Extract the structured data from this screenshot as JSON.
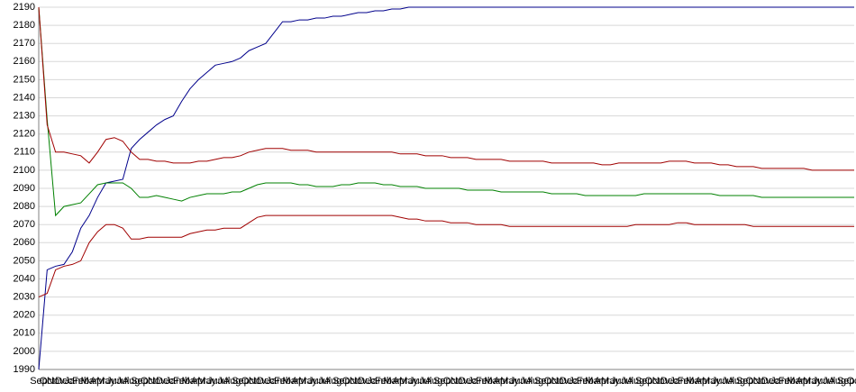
{
  "chart_data": {
    "type": "line",
    "categories": [
      "Sep",
      "Oct",
      "Nov",
      "Dec",
      "Jan",
      "Feb",
      "Mar",
      "Apr",
      "May",
      "Jun",
      "Jul",
      "Aug",
      "Sep",
      "Oct",
      "Nov",
      "Dec",
      "Jan",
      "Feb",
      "Mar",
      "Apr",
      "May",
      "Jun",
      "Jul",
      "Aug",
      "Sep",
      "Oct",
      "Nov",
      "Dec",
      "Jan",
      "Feb",
      "Mar",
      "Apr",
      "May",
      "Jun",
      "Jul",
      "Aug",
      "Sep",
      "Oct",
      "Nov",
      "Dec",
      "Jan",
      "Feb",
      "Mar",
      "Apr",
      "May",
      "Jun",
      "Jul",
      "Aug",
      "Sep",
      "Oct",
      "Nov",
      "Dec",
      "Jan",
      "Feb",
      "Mar",
      "Apr",
      "May",
      "Jun",
      "Jul",
      "Aug",
      "Sep",
      "Oct",
      "Nov",
      "Dec",
      "Jan",
      "Feb",
      "Mar",
      "Apr",
      "May",
      "Jun",
      "Jul",
      "Aug",
      "Sep",
      "Oct",
      "Nov",
      "Dec",
      "Jan",
      "Feb",
      "Mar",
      "Apr",
      "May",
      "Jun",
      "Jul",
      "Aug",
      "Sep",
      "Oct",
      "Nov",
      "Dec",
      "Jan",
      "Feb",
      "Mar",
      "Apr",
      "May",
      "Jun",
      "Jul",
      "Aug",
      "Sep",
      "Oct"
    ],
    "series": [
      {
        "color": "#00008b",
        "values": [
          1990,
          2045,
          2047,
          2048,
          2055,
          2068,
          2075,
          2085,
          2093,
          2094,
          2095,
          2112,
          2117,
          2121,
          2125,
          2128,
          2130,
          2138,
          2145,
          2150,
          2154,
          2158,
          2159,
          2160,
          2162,
          2166,
          2168,
          2170,
          2176,
          2182,
          2182,
          2183,
          2183,
          2184,
          2184,
          2185,
          2185,
          2186,
          2187,
          2187,
          2188,
          2188,
          2189,
          2189,
          2190,
          2190,
          2190,
          2190,
          2190,
          2190,
          2190,
          2190,
          2190,
          2190,
          2190,
          2190,
          2190,
          2190,
          2190,
          2190,
          2190,
          2190,
          2190,
          2190,
          2190,
          2190,
          2190,
          2190,
          2190,
          2190,
          2190,
          2190,
          2190,
          2190,
          2190,
          2190,
          2190,
          2190,
          2190,
          2190,
          2190,
          2190,
          2190,
          2190,
          2190,
          2190,
          2190,
          2190,
          2190,
          2190,
          2190,
          2190,
          2190,
          2190,
          2190,
          2190,
          2190,
          2190
        ]
      },
      {
        "color": "#008000",
        "values": [
          2190,
          2128,
          2075,
          2080,
          2081,
          2082,
          2087,
          2092,
          2093,
          2093,
          2093,
          2090,
          2085,
          2085,
          2086,
          2085,
          2084,
          2083,
          2085,
          2086,
          2087,
          2087,
          2087,
          2088,
          2088,
          2090,
          2092,
          2093,
          2093,
          2093,
          2093,
          2092,
          2092,
          2091,
          2091,
          2091,
          2092,
          2092,
          2093,
          2093,
          2093,
          2092,
          2092,
          2091,
          2091,
          2091,
          2090,
          2090,
          2090,
          2090,
          2090,
          2089,
          2089,
          2089,
          2089,
          2088,
          2088,
          2088,
          2088,
          2088,
          2088,
          2087,
          2087,
          2087,
          2087,
          2086,
          2086,
          2086,
          2086,
          2086,
          2086,
          2086,
          2087,
          2087,
          2087,
          2087,
          2087,
          2087,
          2087,
          2087,
          2087,
          2086,
          2086,
          2086,
          2086,
          2086,
          2085,
          2085,
          2085,
          2085,
          2085,
          2085,
          2085,
          2085,
          2085,
          2085,
          2085,
          2085
        ]
      },
      {
        "color": "#a00000",
        "values": [
          2190,
          2125,
          2110,
          2110,
          2109,
          2108,
          2104,
          2110,
          2117,
          2118,
          2116,
          2110,
          2106,
          2106,
          2105,
          2105,
          2104,
          2104,
          2104,
          2105,
          2105,
          2106,
          2107,
          2107,
          2108,
          2110,
          2111,
          2112,
          2112,
          2112,
          2111,
          2111,
          2111,
          2110,
          2110,
          2110,
          2110,
          2110,
          2110,
          2110,
          2110,
          2110,
          2110,
          2109,
          2109,
          2109,
          2108,
          2108,
          2108,
          2107,
          2107,
          2107,
          2106,
          2106,
          2106,
          2106,
          2105,
          2105,
          2105,
          2105,
          2105,
          2104,
          2104,
          2104,
          2104,
          2104,
          2104,
          2103,
          2103,
          2104,
          2104,
          2104,
          2104,
          2104,
          2104,
          2105,
          2105,
          2105,
          2104,
          2104,
          2104,
          2103,
          2103,
          2102,
          2102,
          2102,
          2101,
          2101,
          2101,
          2101,
          2101,
          2101,
          2100,
          2100,
          2100,
          2100,
          2100,
          2100
        ]
      },
      {
        "color": "#a00000",
        "values": [
          2030,
          2032,
          2045,
          2047,
          2048,
          2050,
          2060,
          2066,
          2070,
          2070,
          2068,
          2062,
          2062,
          2063,
          2063,
          2063,
          2063,
          2063,
          2065,
          2066,
          2067,
          2067,
          2068,
          2068,
          2068,
          2071,
          2074,
          2075,
          2075,
          2075,
          2075,
          2075,
          2075,
          2075,
          2075,
          2075,
          2075,
          2075,
          2075,
          2075,
          2075,
          2075,
          2075,
          2074,
          2073,
          2073,
          2072,
          2072,
          2072,
          2071,
          2071,
          2071,
          2070,
          2070,
          2070,
          2070,
          2069,
          2069,
          2069,
          2069,
          2069,
          2069,
          2069,
          2069,
          2069,
          2069,
          2069,
          2069,
          2069,
          2069,
          2069,
          2070,
          2070,
          2070,
          2070,
          2070,
          2071,
          2071,
          2070,
          2070,
          2070,
          2070,
          2070,
          2070,
          2070,
          2069,
          2069,
          2069,
          2069,
          2069,
          2069,
          2069,
          2069,
          2069,
          2069,
          2069,
          2069,
          2069
        ]
      }
    ],
    "ylim": [
      1990,
      2190
    ],
    "yticks": [
      1990,
      2000,
      2010,
      2020,
      2030,
      2040,
      2050,
      2060,
      2070,
      2080,
      2090,
      2100,
      2110,
      2120,
      2130,
      2140,
      2150,
      2160,
      2170,
      2180,
      2190
    ],
    "grid": true
  }
}
